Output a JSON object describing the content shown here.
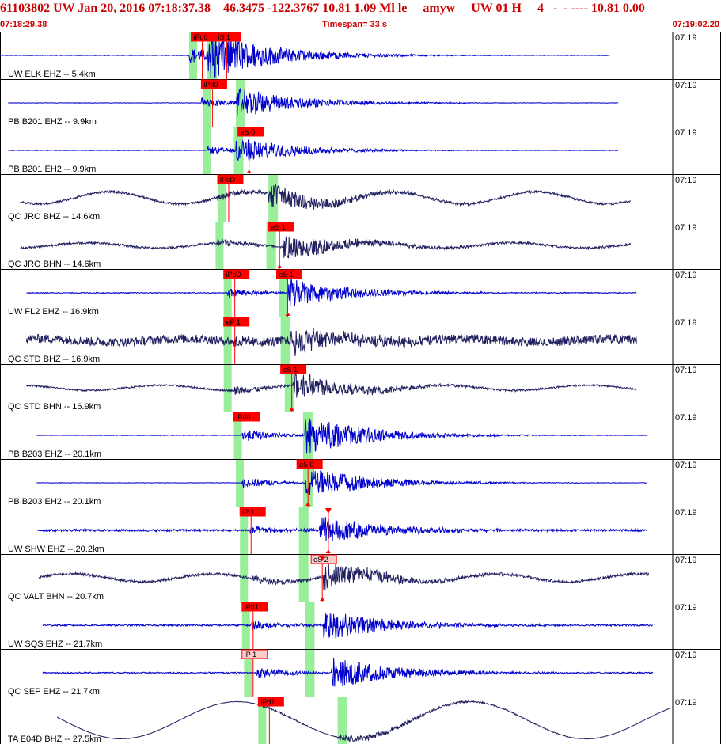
{
  "header": {
    "title": "61103802 UW Jan 20, 2016 07:18:37.38    46.3475 -122.3767 10.81 1.09 Ml le     amyw     UW 01 H     4   -  - ---- 10.81 0.00",
    "start_time": "07:18:29.38",
    "timespan": "Timespan=  33 s",
    "end_time": "07:19:02.20"
  },
  "colors": {
    "background": "#ffffff",
    "title_red": "#cc0000",
    "pick_red": "#ff0000",
    "hilite_green": "#99ee99",
    "trace_blue": "#0000cc",
    "trace_navy": "#202060",
    "panel_border": "#000000"
  },
  "chart_data": {
    "type": "line",
    "title": "61103802 UW Jan 20, 2016 07:18:37.38",
    "x_unit": "seconds",
    "xlim": [
      0,
      33
    ],
    "time_tick": "07:19",
    "traces": [
      {
        "label": "UW ELK EHZ -- 5.4km",
        "color": "#0000cc",
        "kind": "event",
        "start": 0.0,
        "end": 30.0,
        "p": 9.3,
        "s": 10.2,
        "amp": 0.92,
        "noise": 0.01,
        "drift": 0.0,
        "picks": [
          {
            "label": "iPd0",
            "time": 9.4
          },
          {
            "label": "iS 1",
            "time": 10.6
          }
        ],
        "hilite": [
          9.3,
          10.2
        ]
      },
      {
        "label": "PB B201 EHZ -- 9.9km",
        "color": "#0000cc",
        "kind": "event",
        "start": 0.4,
        "end": 30.4,
        "p": 9.9,
        "s": 11.6,
        "amp": 0.55,
        "noise": 0.01,
        "drift": 0.0,
        "picks": [
          {
            "label": "iPd0",
            "time": 9.9
          }
        ],
        "hilite": [
          10.0,
          11.6
        ]
      },
      {
        "label": "PB B201 EH2 -- 9.9km",
        "color": "#0000cc",
        "kind": "event",
        "start": 0.4,
        "end": 30.4,
        "p": 10.2,
        "s": 11.6,
        "amp": 0.45,
        "noise": 0.01,
        "drift": 0.0,
        "picks": [
          {
            "label": "eS 0",
            "time": 11.7,
            "marker": "down"
          }
        ],
        "hilite": [
          10.0,
          11.5
        ]
      },
      {
        "label": "QC JRO BHZ -- 14.6km",
        "color": "#202060",
        "kind": "drift",
        "start": 1.0,
        "end": 31.0,
        "p": 10.7,
        "s": 13.2,
        "amp": 0.45,
        "noise": 0.05,
        "drift": 0.28,
        "picks": [
          {
            "label": "iPcD",
            "time": 10.7
          }
        ],
        "hilite": [
          10.7,
          13.2
        ]
      },
      {
        "label": "QC JRO BHN -- 14.6km",
        "color": "#202060",
        "kind": "drift",
        "start": 1.0,
        "end": 31.0,
        "p": 10.7,
        "s": 13.9,
        "amp": 0.45,
        "noise": 0.05,
        "drift": 0.12,
        "picks": [
          {
            "label": "eS 1",
            "time": 13.2,
            "marker": "down"
          }
        ],
        "hilite": [
          10.6,
          13.1
        ]
      },
      {
        "label": "UW FL2 EHZ -- 16.9km",
        "color": "#0000cc",
        "kind": "event",
        "start": 1.3,
        "end": 31.3,
        "p": 11.2,
        "s": 14.1,
        "amp": 0.55,
        "noise": 0.02,
        "drift": 0.0,
        "picks": [
          {
            "label": "iPcD",
            "time": 11.0
          },
          {
            "label": "eS 1",
            "time": 13.6,
            "marker": "down"
          }
        ],
        "hilite": [
          11.0,
          13.7
        ]
      },
      {
        "label": "QC STD BHZ -- 16.9km",
        "color": "#202060",
        "kind": "noisy",
        "start": 1.3,
        "end": 31.3,
        "p": 11.4,
        "s": 14.3,
        "amp": 0.5,
        "noise": 0.2,
        "drift": 0.08,
        "picks": [
          {
            "label": "eP 1",
            "time": 11.0
          }
        ],
        "hilite": [
          11.0,
          13.8
        ]
      },
      {
        "label": "QC STD BHN -- 16.9km",
        "color": "#202060",
        "kind": "drift",
        "start": 1.3,
        "end": 31.3,
        "p": 11.5,
        "s": 14.4,
        "amp": 0.5,
        "noise": 0.04,
        "drift": 0.12,
        "picks": [
          {
            "label": "eS 1",
            "time": 13.8,
            "marker": "down"
          }
        ],
        "hilite": [
          11.0,
          14.0
        ]
      },
      {
        "label": "PB B203 EHZ -- 20.1km",
        "color": "#0000cc",
        "kind": "event",
        "start": 1.8,
        "end": 31.8,
        "p": 11.9,
        "s": 15.0,
        "amp": 0.7,
        "noise": 0.01,
        "drift": 0.0,
        "picks": [
          {
            "label": "iPd0",
            "time": 11.5
          }
        ],
        "hilite": [
          11.5,
          14.9
        ]
      },
      {
        "label": "PB B203 EH2 -- 20.1km",
        "color": "#0000cc",
        "kind": "event",
        "start": 1.8,
        "end": 31.8,
        "p": 11.9,
        "s": 15.0,
        "amp": 0.6,
        "noise": 0.01,
        "drift": 0.0,
        "picks": [
          {
            "label": "eS 0",
            "time": 14.6,
            "marker": "down"
          }
        ],
        "hilite": [
          11.6,
          14.9
        ]
      },
      {
        "label": "UW SHW EHZ --,20.2km",
        "color": "#0000cc",
        "kind": "event",
        "start": 1.8,
        "end": 31.8,
        "p": 12.3,
        "s": 15.7,
        "amp": 0.5,
        "noise": 0.05,
        "drift": 0.0,
        "picks": [
          {
            "label": "iP 1",
            "time": 11.8
          },
          {
            "label": "",
            "time": 15.6,
            "marker": "down"
          }
        ],
        "hilite": [
          11.8,
          14.7
        ]
      },
      {
        "label": "QC VALT BHN --,20.7km",
        "color": "#202060",
        "kind": "drift",
        "start": 1.9,
        "end": 31.9,
        "p": 12.4,
        "s": 15.9,
        "amp": 0.45,
        "noise": 0.06,
        "drift": 0.18,
        "picks": [
          {
            "label": "eS 2",
            "time": 15.3,
            "marker": "down",
            "light": true
          }
        ],
        "hilite": [
          11.8,
          14.7
        ]
      },
      {
        "label": "UW SQS EHZ -- 21.7km",
        "color": "#0000cc",
        "kind": "event",
        "start": 2.1,
        "end": 32.1,
        "p": 12.3,
        "s": 15.9,
        "amp": 0.55,
        "noise": 0.04,
        "drift": 0.0,
        "picks": [
          {
            "label": "iPd1",
            "time": 11.9
          }
        ],
        "hilite": [
          11.9,
          15.0
        ]
      },
      {
        "label": "QC SEP EHZ -- 21.7km",
        "color": "#0000cc",
        "kind": "event",
        "start": 2.1,
        "end": 32.1,
        "p": 12.6,
        "s": 16.3,
        "amp": 0.6,
        "noise": 0.03,
        "drift": 0.0,
        "picks": [
          {
            "label": "iP 1",
            "time": 11.9,
            "light": true
          }
        ],
        "hilite": [
          12.0,
          15.0
        ]
      },
      {
        "label": "TA E04D BHZ -- 27.5km",
        "color": "#202060",
        "kind": "longperiod",
        "start": 2.8,
        "end": 33.0,
        "p": 12.9,
        "s": 16.6,
        "amp": 0.15,
        "noise": 0.01,
        "drift": 0.85,
        "picks": [
          {
            "label": "iPd1",
            "time": 12.7
          }
        ],
        "hilite": [
          12.7,
          16.6
        ]
      }
    ]
  }
}
